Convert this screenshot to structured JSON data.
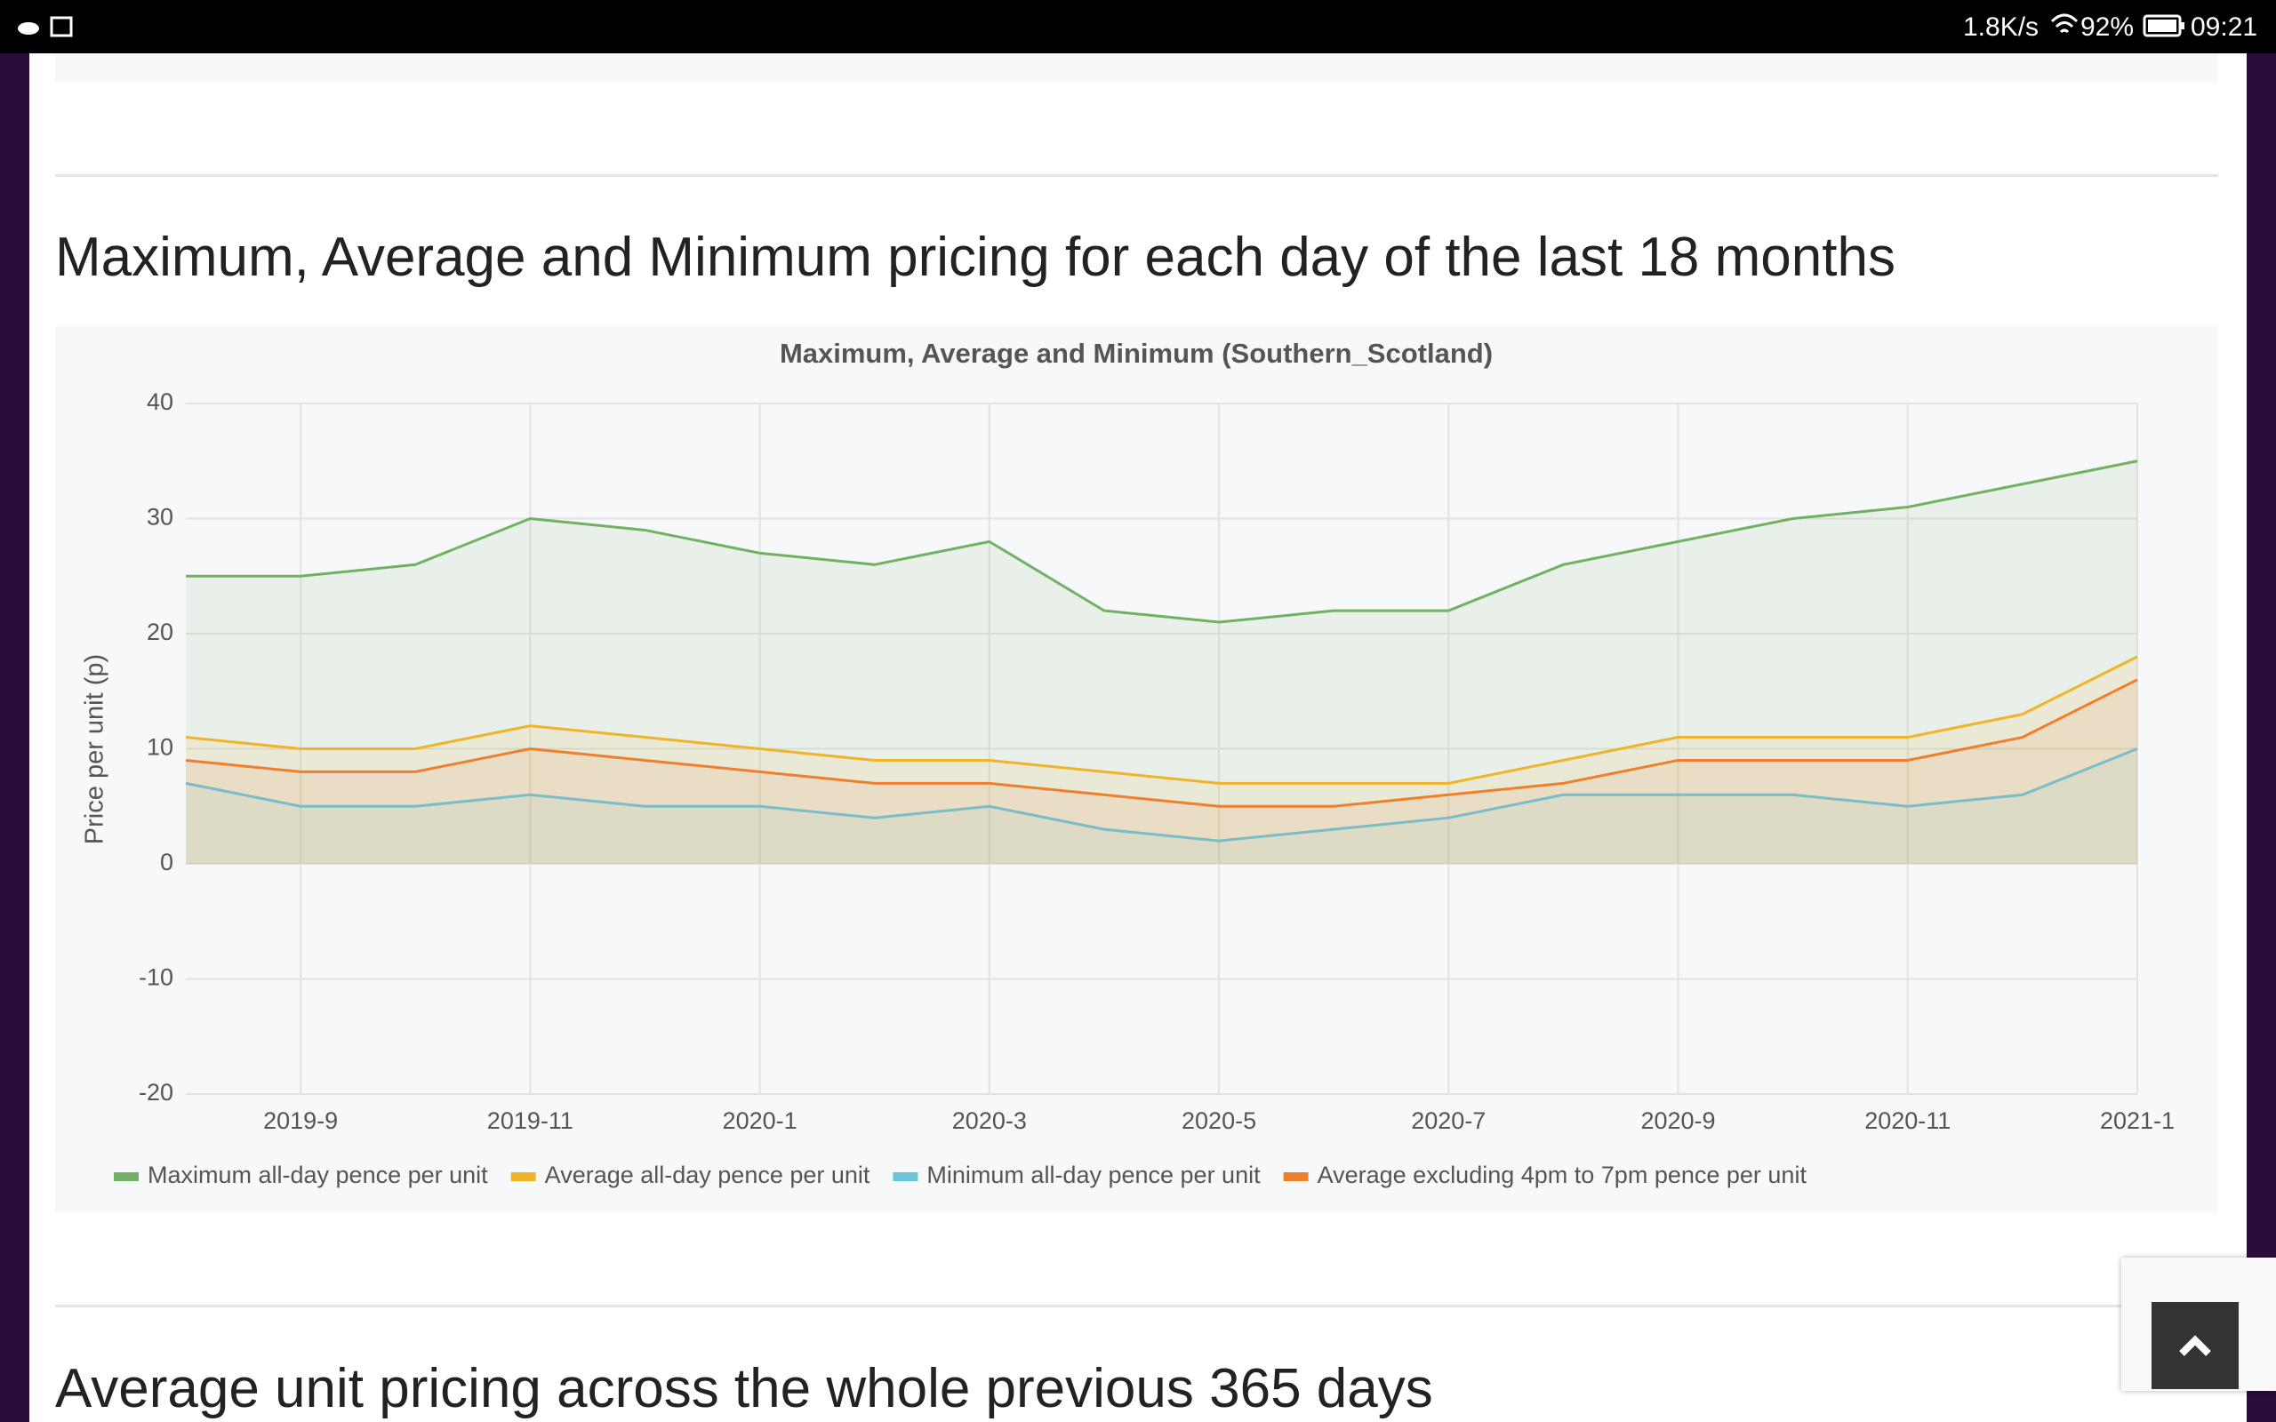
{
  "status_bar": {
    "speed": "1.8K/s",
    "battery": "92%",
    "time": "09:21"
  },
  "heading": "Maximum, Average and Minimum pricing for each day of the last 18 months",
  "next_heading": "Average unit pricing across the whole previous 365 days",
  "chart_data": {
    "type": "line",
    "title": "Maximum, Average and Minimum (Southern_Scotland)",
    "y_label": "Price per unit (p)",
    "x": [
      "2019-8",
      "2019-9",
      "2019-10",
      "2019-11",
      "2019-12",
      "2020-1",
      "2020-2",
      "2020-3",
      "2020-4",
      "2020-5",
      "2020-6",
      "2020-7",
      "2020-8",
      "2020-9",
      "2020-10",
      "2020-11",
      "2020-12",
      "2021-1"
    ],
    "xlim": [
      "2019-8",
      "2021-1"
    ],
    "xticks": [
      "2019-9",
      "2019-11",
      "2020-1",
      "2020-3",
      "2020-5",
      "2020-7",
      "2020-9",
      "2020-11",
      "2021-1"
    ],
    "ylim": [
      -20,
      40
    ],
    "yticks": [
      -20,
      -10,
      0,
      10,
      20,
      30,
      40
    ],
    "grid": true,
    "legend": "bottom",
    "series": [
      {
        "name": "Maximum all-day pence per unit",
        "color": "#72b062",
        "values": [
          25,
          25,
          26,
          30,
          29,
          27,
          26,
          28,
          22,
          21,
          22,
          22,
          26,
          28,
          30,
          31,
          33,
          35
        ]
      },
      {
        "name": "Average all-day pence per unit",
        "color": "#f0b429",
        "values": [
          11,
          10,
          10,
          12,
          11,
          10,
          9,
          9,
          8,
          7,
          7,
          7,
          9,
          11,
          11,
          11,
          13,
          18
        ]
      },
      {
        "name": "Minimum all-day pence per unit",
        "color": "#6cc5d8",
        "values": [
          7,
          5,
          5,
          6,
          5,
          5,
          4,
          5,
          3,
          2,
          3,
          4,
          6,
          6,
          6,
          5,
          6,
          10
        ]
      },
      {
        "name": "Average excluding 4pm to 7pm pence per unit",
        "color": "#f07f2d",
        "values": [
          9,
          8,
          8,
          10,
          9,
          8,
          7,
          7,
          6,
          5,
          5,
          6,
          7,
          9,
          9,
          9,
          11,
          16
        ]
      }
    ]
  }
}
